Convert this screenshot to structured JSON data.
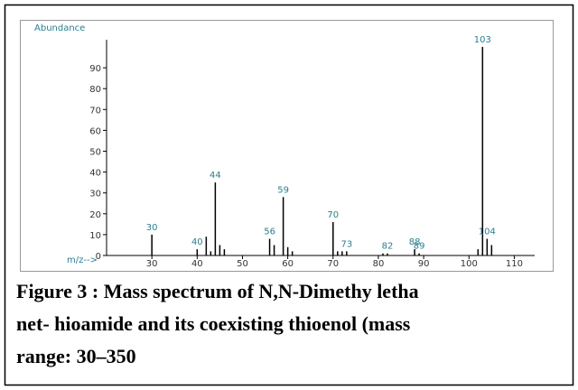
{
  "chart_data": {
    "type": "spectrum",
    "y_label": "Abundance",
    "x_label": "m/z-->",
    "x": [
      30,
      40,
      42,
      43,
      44,
      45,
      46,
      56,
      57,
      59,
      60,
      61,
      70,
      71,
      72,
      73,
      81,
      82,
      88,
      89,
      102,
      103,
      104,
      105
    ],
    "values": [
      10,
      3,
      9,
      2,
      35,
      5,
      3,
      8,
      5,
      28,
      4,
      2,
      16,
      2,
      2,
      2,
      1,
      1,
      3,
      1,
      3,
      100,
      8,
      5
    ],
    "peak_labels": [
      30,
      40,
      null,
      null,
      44,
      null,
      null,
      56,
      null,
      59,
      null,
      null,
      70,
      null,
      null,
      73,
      null,
      82,
      88,
      89,
      null,
      103,
      104,
      null
    ],
    "color": "#000000",
    "xlim": [
      20,
      114.5
    ],
    "xticks": [
      30,
      40,
      50,
      60,
      70,
      80,
      90,
      100,
      110
    ],
    "ylim": [
      0,
      100
    ],
    "yticks": [
      0,
      10,
      20,
      30,
      40,
      50,
      60,
      70,
      80,
      90
    ]
  },
  "caption": [
    "Figure 3 : Mass spectrum of N,N-Dimethy letha",
    "net- hioamide and its coexisting thioenol (mass",
    "range: 30–350"
  ]
}
